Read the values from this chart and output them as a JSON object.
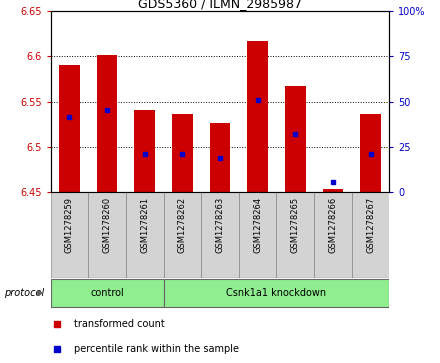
{
  "title": "GDS5360 / ILMN_2985987",
  "samples": [
    "GSM1278259",
    "GSM1278260",
    "GSM1278261",
    "GSM1278262",
    "GSM1278263",
    "GSM1278264",
    "GSM1278265",
    "GSM1278266",
    "GSM1278267"
  ],
  "red_top": [
    6.59,
    6.601,
    6.541,
    6.536,
    6.527,
    6.617,
    6.567,
    6.454,
    6.536
  ],
  "red_bottom": [
    6.45,
    6.45,
    6.45,
    6.45,
    6.45,
    6.45,
    6.45,
    6.45,
    6.45
  ],
  "blue_values": [
    6.533,
    6.541,
    6.492,
    6.492,
    6.488,
    6.552,
    6.514,
    6.462,
    6.492
  ],
  "ylim_left": [
    6.45,
    6.65
  ],
  "ylim_right": [
    0,
    100
  ],
  "yticks_left": [
    6.45,
    6.5,
    6.55,
    6.6,
    6.65
  ],
  "yticks_right": [
    0,
    25,
    50,
    75,
    100
  ],
  "ytick_labels_left": [
    "6.45",
    "6.5",
    "6.55",
    "6.6",
    "6.65"
  ],
  "ytick_labels_right": [
    "0",
    "25",
    "50",
    "75",
    "100%"
  ],
  "control_count": 3,
  "knockdown_count": 6,
  "control_label": "control",
  "knockdown_label": "Csnk1a1 knockdown",
  "protocol_label": "protocol",
  "bar_color": "#CC0000",
  "blue_color": "#0000CC",
  "green_color": "#90EE90",
  "gray_color": "#D3D3D3",
  "legend_red_label": "transformed count",
  "legend_blue_label": "percentile rank within the sample",
  "bar_width": 0.55,
  "title_fontsize": 9,
  "tick_fontsize": 7,
  "label_fontsize": 7,
  "sample_fontsize": 6
}
